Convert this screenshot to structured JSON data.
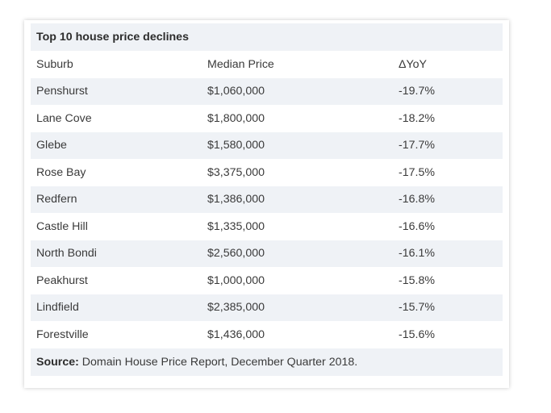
{
  "table": {
    "title": "Top 10 house price declines",
    "headers": [
      "Suburb",
      "Median Price",
      "ΔYoY"
    ],
    "rows": [
      [
        "Penshurst",
        "$1,060,000",
        "-19.7%"
      ],
      [
        "Lane Cove",
        "$1,800,000",
        "-18.2%"
      ],
      [
        "Glebe",
        "$1,580,000",
        "-17.7%"
      ],
      [
        "Rose Bay",
        "$3,375,000",
        "-17.5%"
      ],
      [
        "Redfern",
        "$1,386,000",
        "-16.8%"
      ],
      [
        "Castle Hill",
        "$1,335,000",
        "-16.6%"
      ],
      [
        "North Bondi",
        "$2,560,000",
        "-16.1%"
      ],
      [
        "Peakhurst",
        "$1,000,000",
        "-15.8%"
      ],
      [
        "Lindfield",
        "$2,385,000",
        "-15.7%"
      ],
      [
        "Forestville",
        "$1,436,000",
        "-15.6%"
      ]
    ],
    "source_label": "Source:",
    "source_text": " Domain House Price Report, December Quarter 2018."
  },
  "colors": {
    "shaded_row": "#eff2f6",
    "text": "#3a3a3a"
  }
}
